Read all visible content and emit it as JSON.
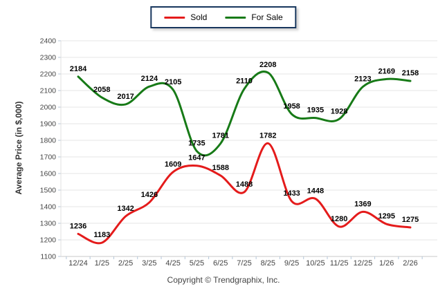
{
  "legend": {
    "items": [
      {
        "label": "Sold",
        "color": "#e41b1b"
      },
      {
        "label": "For Sale",
        "color": "#177a17"
      }
    ],
    "border_color": "#17365d"
  },
  "footer": {
    "copyright": "Copyright © Trendgraphix, Inc."
  },
  "chart_data": {
    "type": "line",
    "title": "",
    "xlabel": "",
    "ylabel": "Average Price (in $,000)",
    "categories": [
      "12/24",
      "1/25",
      "2/25",
      "3/25",
      "4/25",
      "5/25",
      "6/25",
      "7/25",
      "8/25",
      "9/25",
      "10/25",
      "11/25",
      "12/25",
      "1/26",
      "2/26"
    ],
    "series": [
      {
        "name": "Sold",
        "color": "#e41b1b",
        "values": [
          1236,
          1183,
          1342,
          1426,
          1609,
          1647,
          1588,
          1488,
          1782,
          1433,
          1448,
          1280,
          1369,
          1295,
          1275
        ]
      },
      {
        "name": "For Sale",
        "color": "#177a17",
        "values": [
          2184,
          2058,
          2017,
          2124,
          2105,
          1735,
          1781,
          2110,
          2208,
          1958,
          1935,
          1928,
          2123,
          2169,
          2158
        ]
      }
    ],
    "ylim": [
      1100,
      2400
    ],
    "ytick_step": 100,
    "grid": "horizontal",
    "smooth": true,
    "point_labels": true,
    "legend_position": "top-center",
    "colors": {
      "gridline": "#e4e4e4",
      "axis": "#c9c9c9",
      "tick": "#b3c6d9",
      "tick_label": "#444444",
      "point_label": "#000000"
    }
  }
}
